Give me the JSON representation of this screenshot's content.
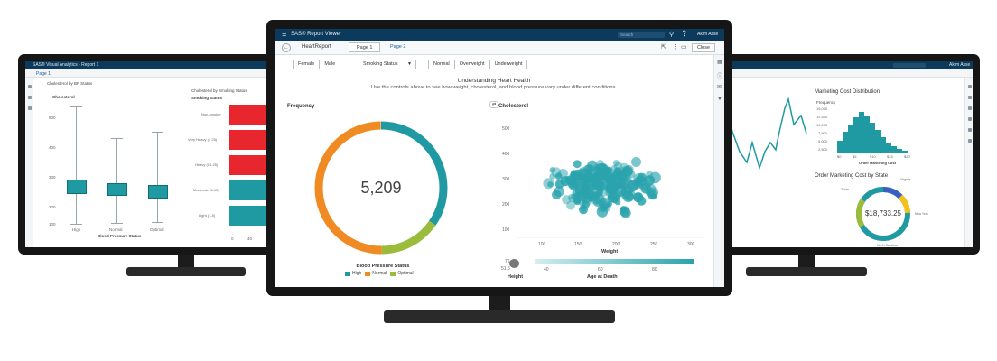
{
  "left_screen": {
    "title": "SAS® Visual Analytics - Report 1",
    "page_tab": "Page 1",
    "boxplot": {
      "title": "Cholesterol by BP Status",
      "y_title": "Cholesterol",
      "y_ticks": [
        "500",
        "400",
        "300",
        "200",
        "100"
      ],
      "categories": [
        "High",
        "Normal",
        "Optimal"
      ],
      "x_title": "Blood Pressure Status"
    },
    "barchart": {
      "title": "Cholesterol by Smoking Status",
      "y_title": "Smoking Status",
      "categories": [
        "Non-smoker",
        "Very Heavy (> 25)",
        "Heavy (16-25)",
        "Moderate (6-15)",
        "Light (1-5)"
      ],
      "x_ticks": [
        "0",
        "40",
        "80"
      ]
    }
  },
  "center_screen": {
    "app_title": "SAS® Report Viewer",
    "search_placeholder": "Search",
    "user_name": "Akim Asse",
    "report_name": "HeartReport",
    "tabs": [
      "Page 1",
      "Page 2"
    ],
    "close_label": "Close",
    "gender_buttons": [
      "Female",
      "Male"
    ],
    "smoking_dropdown": "Smoking Status",
    "weight_buttons": [
      "Normal",
      "Overweight",
      "Underweight"
    ],
    "heading": "Understanding Heart Health",
    "subheading": "Use the controls above to see how weight, cholesterol, and blood pressure vary under different conditions.",
    "donut": {
      "title": "Frequency",
      "value": "5,209",
      "legend_title": "Blood Pressure Status",
      "legend": [
        {
          "label": "High",
          "color": "#1f9aa3"
        },
        {
          "label": "Normal",
          "color": "#ef8b22"
        },
        {
          "label": "Optimal",
          "color": "#9bbb3a"
        }
      ],
      "colors": {
        "high": "#1f9aa3",
        "normal": "#ef8b22",
        "optimal": "#9bbb3a"
      }
    },
    "scatter": {
      "y_title": "Cholesterol",
      "y_ticks": [
        "500",
        "400",
        "300",
        "200",
        "100"
      ],
      "x_ticks": [
        "100",
        "150",
        "200",
        "250",
        "300"
      ],
      "x_title": "Weight",
      "slider_ticks": [
        "40",
        "60",
        "80"
      ],
      "slider_title": "Age at Death",
      "height_title": "Height",
      "height_values": [
        "76",
        "51.5"
      ],
      "color": "#2aa3ad"
    }
  },
  "right_screen": {
    "user_name": "Akim Asse",
    "histogram": {
      "title": "Marketing Cost Distribution",
      "y_title": "Frequency",
      "y_ticks": [
        "15,000",
        "12,500",
        "10,000",
        "7,500",
        "5,000",
        "2,500"
      ],
      "x_ticks": [
        "$0",
        "$5",
        "$10",
        "$15",
        "$20"
      ],
      "x_title": "Order Marketing Cost"
    },
    "donut": {
      "title": "Order Marketing Cost by State",
      "value": "$18,733.25",
      "labels": [
        "Texas",
        "Virginia",
        "New York",
        "North Carolina"
      ]
    }
  }
}
